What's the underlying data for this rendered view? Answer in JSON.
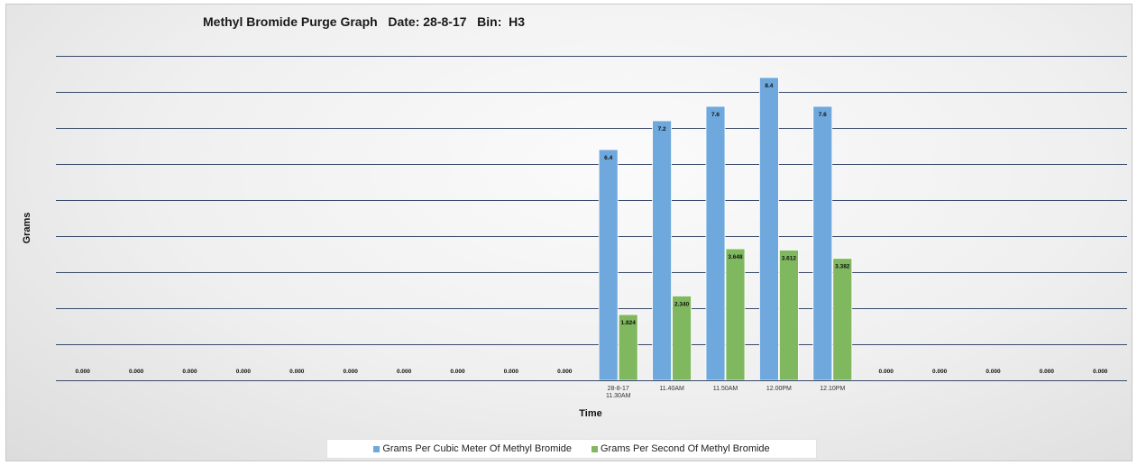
{
  "chart_data": {
    "type": "bar",
    "title": "Methyl Bromide Purge Graph   Date: 28-8-17   Bin:  H3",
    "xlabel": "Time",
    "ylabel": "Grams",
    "ylim": [
      0,
      9
    ],
    "grid": true,
    "legend": "bottom",
    "categories": [
      "",
      "",
      "",
      "",
      "",
      "",
      "",
      "",
      "",
      "",
      "28-8-17\n11.30AM",
      "11.40AM",
      "11.50AM",
      "12.00PM",
      "12.10PM",
      "",
      "",
      "",
      "",
      ""
    ],
    "series": [
      {
        "name": "Grams Per Cubic Meter Of Methyl Bromide",
        "color": "#6fa8dc",
        "values": [
          null,
          null,
          null,
          null,
          null,
          null,
          null,
          null,
          null,
          null,
          6.4,
          7.2,
          7.6,
          8.4,
          7.6,
          null,
          null,
          null,
          null,
          null
        ],
        "labels": [
          "",
          "",
          "",
          "",
          "",
          "",
          "",
          "",
          "",
          "",
          "6.4",
          "7.2",
          "7.6",
          "8.4",
          "7.6",
          "",
          "",
          "",
          "",
          ""
        ]
      },
      {
        "name": "Grams Per Second Of Methyl Bromide",
        "color": "#7fb85e",
        "values": [
          0,
          0,
          0,
          0,
          0,
          0,
          0,
          0,
          0,
          0,
          1.824,
          2.34,
          3.648,
          3.612,
          3.382,
          0,
          0,
          0,
          0,
          0
        ],
        "labels": [
          "0.000",
          "0.000",
          "0.000",
          "0.000",
          "0.000",
          "0.000",
          "0.000",
          "0.000",
          "0.000",
          "0.000",
          "1.824",
          "2.340",
          "3.648",
          "3.612",
          "3.382",
          "0.000",
          "0.000",
          "0.000",
          "0.000",
          "0.000"
        ]
      }
    ]
  }
}
